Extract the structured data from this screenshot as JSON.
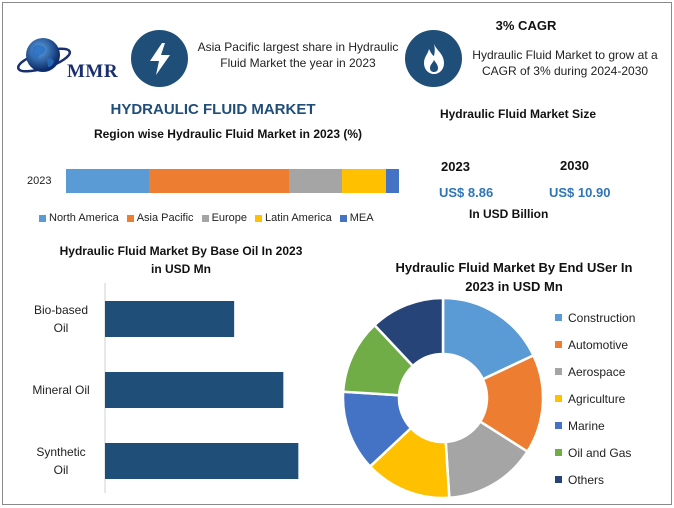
{
  "header": {
    "logo_text": "MMR",
    "fact1": "Asia Pacific largest share in Hydraulic Fluid Market the year in 2023",
    "cagr_title": "3% CAGR",
    "fact2": "Hydraulic Fluid Market to grow at a CAGR of 3% during 2024-2030"
  },
  "main_title": "HYDRAULIC FLUID MARKET",
  "market_size": {
    "title": "Hydraulic Fluid Market Size",
    "year_a": "2023",
    "year_b": "2030",
    "value_a": "US$ 8.86",
    "value_b": "US$ 10.90",
    "unit": "In USD Billion"
  },
  "colors": {
    "dark_blue": "#1f4e79",
    "navy_bar": "#1f4e79",
    "value_blue": "#2e75b6"
  },
  "chart_data": [
    {
      "type": "bar",
      "title": "Region wise Hydraulic Fluid Market in 2023 (%)",
      "orientation": "horizontal-stacked",
      "categories": [
        "2023"
      ],
      "series": [
        {
          "name": "North America",
          "values": [
            25
          ],
          "color": "#5b9bd5"
        },
        {
          "name": "Asia Pacific",
          "values": [
            42
          ],
          "color": "#ed7d31"
        },
        {
          "name": "Europe",
          "values": [
            16
          ],
          "color": "#a5a5a5"
        },
        {
          "name": "Latin America",
          "values": [
            13
          ],
          "color": "#ffc000"
        },
        {
          "name": "MEA",
          "values": [
            4
          ],
          "color": "#4472c4"
        }
      ],
      "legend": "bottom"
    },
    {
      "type": "bar",
      "title": "Hydraulic Fluid Market By Base Oil In 2023 in USD Mn",
      "orientation": "horizontal",
      "categories": [
        "Bio-based Oil",
        "Mineral Oil",
        "Synthetic Oil"
      ],
      "category_lines": [
        [
          "Bio-based",
          "Oil"
        ],
        [
          "Mineral Oil"
        ],
        [
          "Synthetic",
          "Oil"
        ]
      ],
      "values": [
        1550,
        2140,
        2320
      ],
      "xlim": [
        0,
        2400
      ],
      "color": "#1f4e79"
    },
    {
      "type": "pie",
      "style": "donut",
      "title": "Hydraulic Fluid Market By End USer In 2023 in USD Mn",
      "categories": [
        "Construction",
        "Automotive",
        "Aerospace",
        "Agriculture",
        "Marine",
        "Oil and Gas",
        "Others"
      ],
      "values": [
        18,
        16,
        15,
        14,
        13,
        12,
        12
      ],
      "colors": [
        "#5b9bd5",
        "#ed7d31",
        "#a5a5a5",
        "#ffc000",
        "#4472c4",
        "#70ad47",
        "#264478"
      ],
      "legend": "right"
    }
  ],
  "icons": {
    "bolt": "lightning-bolt-icon",
    "flame": "flame-icon",
    "globe": "globe-icon"
  }
}
